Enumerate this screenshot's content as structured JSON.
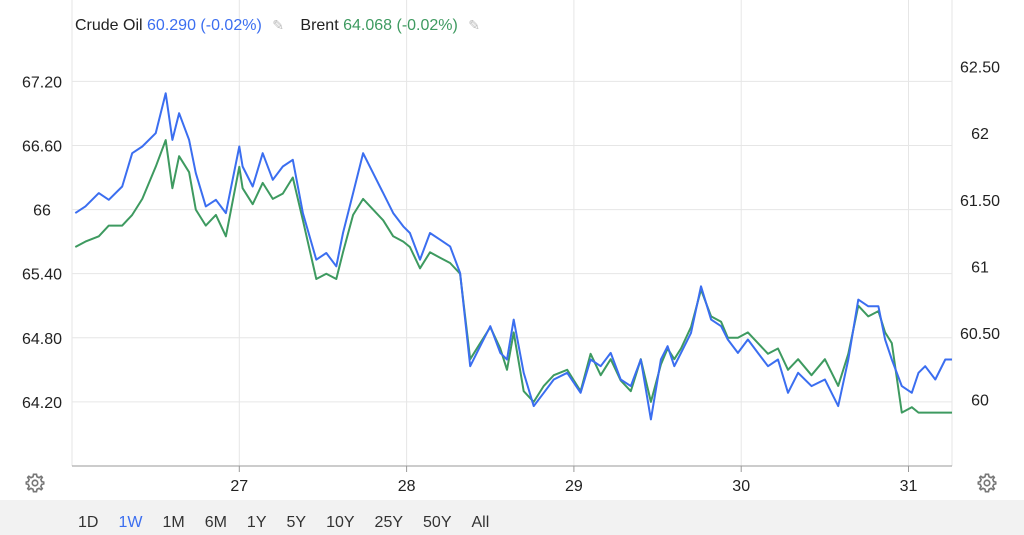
{
  "legend": {
    "series1_name": "Crude Oil",
    "series1_value": "60.290 (-0.02%)",
    "series2_name": "Brent",
    "series2_value": "64.068 (-0.02%)"
  },
  "ranges": [
    "1D",
    "1W",
    "1M",
    "6M",
    "1Y",
    "5Y",
    "10Y",
    "25Y",
    "50Y",
    "All"
  ],
  "active_range": "1W",
  "colors": {
    "series1": "#3b6ef0",
    "series2": "#3e9a60",
    "grid": "#e6e6e6",
    "axis": "#999999"
  },
  "icons": {
    "edit": "pencil-icon",
    "settings": "gear-icon"
  },
  "chart_data": {
    "type": "line",
    "x_ticks": [
      {
        "x": 27,
        "label": "27"
      },
      {
        "x": 28,
        "label": "28"
      },
      {
        "x": 29,
        "label": "29"
      },
      {
        "x": 30,
        "label": "30"
      },
      {
        "x": 31,
        "label": "31"
      }
    ],
    "xlim": [
      26.0,
      31.26
    ],
    "left_axis": {
      "ylim": [
        63.6,
        67.4
      ],
      "ticks": [
        "67.20",
        "66.60",
        "66",
        "65.40",
        "64.80",
        "64.20"
      ],
      "tick_values": [
        67.2,
        66.6,
        66.0,
        65.4,
        64.8,
        64.2
      ]
    },
    "right_axis": {
      "ylim": [
        59.5,
        62.55
      ],
      "ticks": [
        "62.50",
        "62",
        "61.50",
        "61",
        "60.50",
        "60"
      ],
      "tick_values": [
        62.5,
        62.0,
        61.5,
        61.0,
        60.5,
        60.0
      ]
    },
    "grid": true,
    "series": [
      {
        "name": "Crude Oil",
        "axis": "right",
        "x": [
          26.02,
          26.08,
          26.16,
          26.22,
          26.3,
          26.36,
          26.42,
          26.5,
          26.56,
          26.6,
          26.64,
          26.7,
          26.74,
          26.8,
          26.86,
          26.92,
          27.0,
          27.02,
          27.08,
          27.14,
          27.2,
          27.26,
          27.32,
          27.38,
          27.46,
          27.52,
          27.58,
          27.62,
          27.68,
          27.74,
          27.8,
          27.86,
          27.92,
          27.98,
          28.02,
          28.08,
          28.14,
          28.2,
          28.26,
          28.32,
          28.38,
          28.44,
          28.5,
          28.56,
          28.6,
          28.64,
          28.7,
          28.76,
          28.82,
          28.88,
          28.96,
          29.04,
          29.1,
          29.16,
          29.22,
          29.28,
          29.34,
          29.4,
          29.46,
          29.52,
          29.56,
          29.6,
          29.64,
          29.7,
          29.76,
          29.82,
          29.88,
          29.92,
          29.98,
          30.04,
          30.1,
          30.16,
          30.22,
          30.28,
          30.34,
          30.42,
          30.5,
          30.58,
          30.64,
          30.7,
          30.76,
          30.82,
          30.86,
          30.9,
          30.96,
          31.02,
          31.06,
          31.1,
          31.16,
          31.22,
          31.26
        ],
        "y": [
          61.4,
          61.45,
          61.55,
          61.5,
          61.6,
          61.85,
          61.9,
          62.0,
          62.3,
          61.95,
          62.15,
          61.95,
          61.7,
          61.45,
          61.5,
          61.4,
          61.9,
          61.75,
          61.6,
          61.85,
          61.65,
          61.75,
          61.8,
          61.4,
          61.05,
          61.1,
          61.0,
          61.25,
          61.55,
          61.85,
          61.7,
          61.55,
          61.4,
          61.3,
          61.25,
          61.05,
          61.25,
          61.2,
          61.15,
          60.95,
          60.25,
          60.4,
          60.55,
          60.35,
          60.3,
          60.6,
          60.2,
          59.95,
          60.05,
          60.15,
          60.2,
          60.05,
          60.3,
          60.25,
          60.35,
          60.15,
          60.1,
          60.3,
          59.85,
          60.3,
          60.4,
          60.25,
          60.35,
          60.5,
          60.85,
          60.6,
          60.55,
          60.45,
          60.35,
          60.45,
          60.35,
          60.25,
          60.3,
          60.05,
          60.2,
          60.1,
          60.15,
          59.95,
          60.3,
          60.75,
          60.7,
          60.7,
          60.45,
          60.3,
          60.1,
          60.05,
          60.2,
          60.25,
          60.15,
          60.3,
          60.3
        ]
      },
      {
        "name": "Brent",
        "axis": "left",
        "x": [
          26.02,
          26.08,
          26.16,
          26.22,
          26.3,
          26.36,
          26.42,
          26.5,
          26.56,
          26.6,
          26.64,
          26.7,
          26.74,
          26.8,
          26.86,
          26.92,
          27.0,
          27.02,
          27.08,
          27.14,
          27.2,
          27.26,
          27.32,
          27.38,
          27.46,
          27.52,
          27.58,
          27.62,
          27.68,
          27.74,
          27.8,
          27.86,
          27.92,
          27.98,
          28.02,
          28.08,
          28.14,
          28.2,
          28.26,
          28.32,
          28.38,
          28.44,
          28.5,
          28.56,
          28.6,
          28.64,
          28.7,
          28.76,
          28.82,
          28.88,
          28.96,
          29.04,
          29.1,
          29.16,
          29.22,
          29.28,
          29.34,
          29.4,
          29.46,
          29.52,
          29.56,
          29.6,
          29.64,
          29.7,
          29.76,
          29.82,
          29.88,
          29.92,
          29.98,
          30.04,
          30.1,
          30.16,
          30.22,
          30.28,
          30.34,
          30.42,
          30.5,
          30.58,
          30.64,
          30.7,
          30.76,
          30.82,
          30.86,
          30.9,
          30.96,
          31.02,
          31.06,
          31.1,
          31.16,
          31.22,
          31.26
        ],
        "y": [
          65.65,
          65.7,
          65.75,
          65.85,
          65.85,
          65.95,
          66.1,
          66.4,
          66.65,
          66.2,
          66.5,
          66.35,
          66.0,
          65.85,
          65.95,
          65.75,
          66.4,
          66.2,
          66.05,
          66.25,
          66.1,
          66.15,
          66.3,
          65.9,
          65.35,
          65.4,
          65.35,
          65.6,
          65.95,
          66.1,
          66.0,
          65.9,
          65.75,
          65.7,
          65.65,
          65.45,
          65.6,
          65.55,
          65.5,
          65.4,
          64.6,
          64.75,
          64.9,
          64.7,
          64.5,
          64.85,
          64.3,
          64.2,
          64.35,
          64.45,
          64.5,
          64.3,
          64.65,
          64.45,
          64.6,
          64.4,
          64.3,
          64.6,
          64.2,
          64.55,
          64.7,
          64.6,
          64.7,
          64.9,
          65.25,
          65.0,
          64.95,
          64.8,
          64.8,
          64.85,
          64.75,
          64.65,
          64.7,
          64.5,
          64.6,
          64.45,
          64.6,
          64.35,
          64.65,
          65.1,
          65.0,
          65.05,
          64.85,
          64.75,
          64.1,
          64.15,
          64.1,
          64.1,
          64.1,
          64.1,
          64.1
        ]
      }
    ]
  }
}
